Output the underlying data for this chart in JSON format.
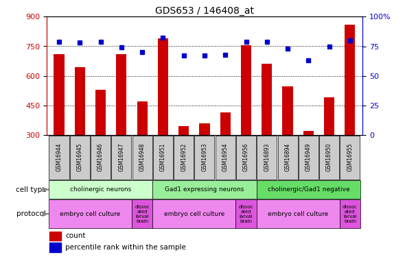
{
  "title": "GDS653 / 146408_at",
  "samples": [
    "GSM16944",
    "GSM16945",
    "GSM16946",
    "GSM16947",
    "GSM16948",
    "GSM16951",
    "GSM16952",
    "GSM16953",
    "GSM16954",
    "GSM16956",
    "GSM16893",
    "GSM16894",
    "GSM16949",
    "GSM16950",
    "GSM16955"
  ],
  "counts": [
    710,
    645,
    530,
    710,
    470,
    790,
    345,
    360,
    415,
    755,
    660,
    545,
    320,
    490,
    860
  ],
  "percentiles": [
    79,
    78,
    79,
    74,
    70,
    82,
    67,
    67,
    68,
    79,
    79,
    73,
    63,
    75,
    80
  ],
  "ylim_left": [
    300,
    900
  ],
  "ylim_right": [
    0,
    100
  ],
  "yticks_left": [
    300,
    450,
    600,
    750,
    900
  ],
  "yticks_right": [
    0,
    25,
    50,
    75,
    100
  ],
  "bar_color": "#cc0000",
  "dot_color": "#0000cc",
  "cell_type_groups": [
    {
      "label": "cholinergic neurons",
      "start": 0,
      "end": 4,
      "color": "#ccffcc"
    },
    {
      "label": "Gad1 expressing neurons",
      "start": 5,
      "end": 9,
      "color": "#99ee99"
    },
    {
      "label": "cholinergic/Gad1 negative",
      "start": 10,
      "end": 14,
      "color": "#66dd66"
    }
  ],
  "protocol_groups": [
    {
      "label": "embryo cell culture",
      "start": 0,
      "end": 3,
      "color": "#ee88ee"
    },
    {
      "label": "dissoc\nated\nlarval\nbrain",
      "start": 4,
      "end": 4,
      "color": "#dd55dd"
    },
    {
      "label": "embryo cell culture",
      "start": 5,
      "end": 8,
      "color": "#ee88ee"
    },
    {
      "label": "dissoc\nated\nlarval\nbrain",
      "start": 9,
      "end": 9,
      "color": "#dd55dd"
    },
    {
      "label": "embryo cell culture",
      "start": 10,
      "end": 13,
      "color": "#ee88ee"
    },
    {
      "label": "dissoc\nated\nlarval\nbrain",
      "start": 14,
      "end": 14,
      "color": "#dd55dd"
    }
  ],
  "tick_label_color_left": "#cc0000",
  "tick_label_color_right": "#0000cc",
  "sample_box_color": "#cccccc",
  "legend_items": [
    {
      "color": "#cc0000",
      "label": "count"
    },
    {
      "color": "#0000cc",
      "label": "percentile rank within the sample"
    }
  ]
}
